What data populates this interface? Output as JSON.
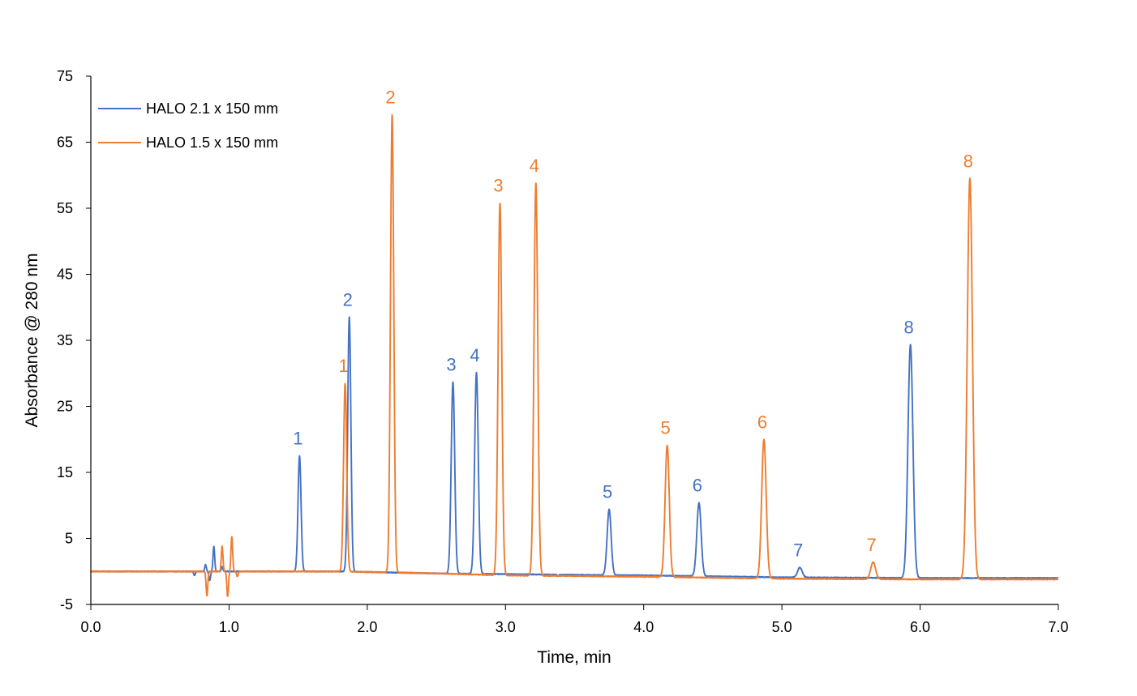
{
  "chart_data": {
    "type": "line",
    "title": "",
    "xlabel": "Time, min",
    "ylabel": "Absorbance @ 280 nm",
    "xlim": [
      0.0,
      7.0
    ],
    "ylim": [
      -5,
      75
    ],
    "x_ticks": [
      0.0,
      1.0,
      2.0,
      3.0,
      4.0,
      5.0,
      6.0,
      7.0
    ],
    "x_tick_labels": [
      "0.0",
      "1.0",
      "2.0",
      "3.0",
      "4.0",
      "5.0",
      "6.0",
      "7.0"
    ],
    "y_ticks": [
      -5,
      5,
      15,
      25,
      35,
      45,
      55,
      65,
      75
    ],
    "y_tick_labels": [
      "-5",
      "5",
      "15",
      "25",
      "35",
      "45",
      "55",
      "65",
      "75"
    ],
    "grid": false,
    "legend_position": "top-left",
    "series": [
      {
        "name": "HALO 2.1 x 150 mm",
        "color": "#4472C4",
        "baseline": [
          [
            0.0,
            0.0
          ],
          [
            1.8,
            0.0
          ],
          [
            2.5,
            -0.3
          ],
          [
            3.4,
            -0.5
          ],
          [
            4.0,
            -0.6
          ],
          [
            5.0,
            -0.9
          ],
          [
            6.0,
            -1.0
          ],
          [
            7.0,
            -1.0
          ]
        ],
        "disturbances": [
          {
            "time": 0.75,
            "value": -0.6
          },
          {
            "time": 0.83,
            "value": 1.0
          },
          {
            "time": 0.86,
            "value": -1.4
          },
          {
            "time": 0.89,
            "value": 3.8
          },
          {
            "time": 0.95,
            "value": 0.7
          },
          {
            "time": 3.38,
            "value": -0.2
          }
        ],
        "peaks": [
          {
            "label": "1",
            "time": 1.51,
            "height": 17.5
          },
          {
            "label": "2",
            "time": 1.87,
            "height": 38.5
          },
          {
            "label": "3",
            "time": 2.62,
            "height": 28.7
          },
          {
            "label": "4",
            "time": 2.79,
            "height": 30.1
          },
          {
            "label": "5",
            "time": 3.75,
            "height": 9.4
          },
          {
            "label": "6",
            "time": 4.4,
            "height": 10.4
          },
          {
            "label": "7",
            "time": 5.13,
            "height": 0.6
          },
          {
            "label": "8",
            "time": 5.93,
            "height": 34.3
          }
        ]
      },
      {
        "name": "HALO 1.5 x 150 mm",
        "color": "#ED7D31",
        "baseline": [
          [
            0.0,
            0.0
          ],
          [
            1.8,
            0.0
          ],
          [
            2.5,
            -0.3
          ],
          [
            3.0,
            -0.6
          ],
          [
            4.0,
            -0.8
          ],
          [
            5.0,
            -1.1
          ],
          [
            6.0,
            -1.2
          ],
          [
            7.0,
            -1.2
          ]
        ],
        "disturbances": [
          {
            "time": 0.84,
            "value": -3.7
          },
          {
            "time": 0.95,
            "value": 3.8
          },
          {
            "time": 0.99,
            "value": -3.8
          },
          {
            "time": 1.02,
            "value": 5.3
          },
          {
            "time": 1.06,
            "value": -0.8
          }
        ],
        "peaks": [
          {
            "label": "1",
            "time": 1.84,
            "height": 28.5
          },
          {
            "label": "2",
            "time": 2.18,
            "height": 69.2
          },
          {
            "label": "3",
            "time": 2.96,
            "height": 55.8
          },
          {
            "label": "4",
            "time": 3.22,
            "height": 58.8
          },
          {
            "label": "5",
            "time": 4.17,
            "height": 19.1
          },
          {
            "label": "6",
            "time": 4.87,
            "height": 20.0
          },
          {
            "label": "7",
            "time": 5.66,
            "height": 1.4
          },
          {
            "label": "8",
            "time": 6.36,
            "height": 59.5
          }
        ]
      }
    ]
  }
}
